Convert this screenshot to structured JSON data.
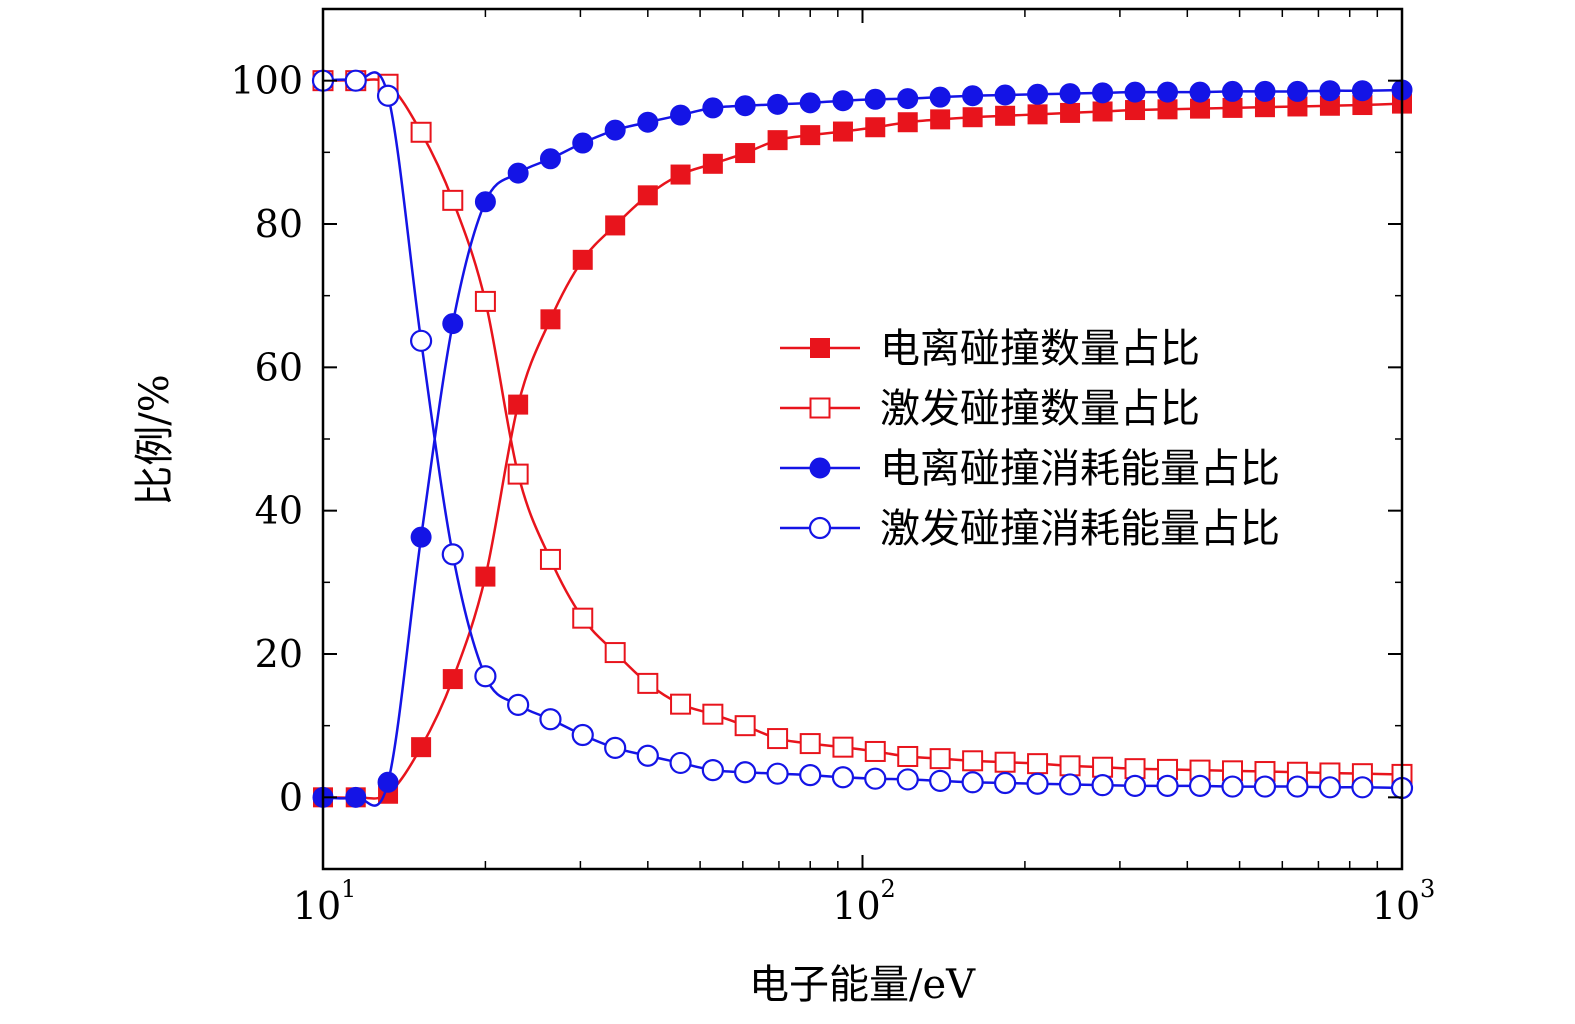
{
  "chart_data": {
    "type": "line",
    "xlabel": "电子能量/eV",
    "ylabel": "比例/%",
    "xscale": "log",
    "xlim": [
      10,
      1000
    ],
    "ylim": [
      -10,
      110
    ],
    "y_ticks": [
      0,
      20,
      40,
      60,
      80,
      100
    ],
    "y_tick_labels": [
      "0",
      "20",
      "40",
      "60",
      "80",
      "100"
    ],
    "x_ticks": [
      {
        "base": "10",
        "exp": "1",
        "value": 10
      },
      {
        "base": "10",
        "exp": "2",
        "value": 100
      },
      {
        "base": "10",
        "exp": "3",
        "value": 1000
      }
    ],
    "grid": false,
    "legend_position": "center-right",
    "series": [
      {
        "name": "电离碰撞数量占比",
        "color": "#e8141c",
        "marker": "square-filled",
        "x": [
          10,
          11.5,
          13.2,
          15.2,
          17.4,
          20,
          23,
          26.4,
          30.3,
          34.8,
          40,
          46,
          52.8,
          60.6,
          69.6,
          80,
          92,
          105.6,
          121.3,
          139.3,
          160,
          183.8,
          211.1,
          242.5,
          278.6,
          320,
          367.6,
          422.3,
          485.1,
          557.2,
          640,
          735.2,
          844.5,
          1000
        ],
        "y": [
          0,
          0,
          0.5,
          7,
          16.5,
          30.8,
          54.8,
          66.7,
          75,
          79.8,
          84,
          86.9,
          88.4,
          89.9,
          91.7,
          92.4,
          92.9,
          93.5,
          94.2,
          94.6,
          94.9,
          95.1,
          95.3,
          95.5,
          95.7,
          95.9,
          96,
          96.1,
          96.2,
          96.3,
          96.4,
          96.5,
          96.6,
          96.8
        ]
      },
      {
        "name": "激发碰撞数量占比",
        "color": "#e8141c",
        "marker": "square-open",
        "x": [
          10,
          11.5,
          13.2,
          15.2,
          17.4,
          20,
          23,
          26.4,
          30.3,
          34.8,
          40,
          46,
          52.8,
          60.6,
          69.6,
          80,
          92,
          105.6,
          121.3,
          139.3,
          160,
          183.8,
          211.1,
          242.5,
          278.6,
          320,
          367.6,
          422.3,
          485.1,
          557.2,
          640,
          735.2,
          844.5,
          1000
        ],
        "y": [
          100,
          100,
          99.5,
          92.8,
          83.3,
          69.2,
          45.1,
          33.2,
          25,
          20.2,
          15.9,
          13,
          11.6,
          10,
          8.2,
          7.5,
          7,
          6.4,
          5.7,
          5.4,
          5.1,
          4.9,
          4.7,
          4.4,
          4.2,
          4,
          3.9,
          3.8,
          3.7,
          3.6,
          3.5,
          3.4,
          3.3,
          3.2
        ]
      },
      {
        "name": "电离碰撞消耗能量占比",
        "color": "#1414e6",
        "marker": "circle-filled",
        "x": [
          10,
          11.5,
          13.2,
          15.2,
          17.4,
          20,
          23,
          26.4,
          30.3,
          34.8,
          40,
          46,
          52.8,
          60.6,
          69.6,
          80,
          92,
          105.6,
          121.3,
          139.3,
          160,
          183.8,
          211.1,
          242.5,
          278.6,
          320,
          367.6,
          422.3,
          485.1,
          557.2,
          640,
          735.2,
          844.5,
          1000
        ],
        "y": [
          0,
          0,
          2.1,
          36.3,
          66.1,
          83.1,
          87.1,
          89.1,
          91.3,
          93.1,
          94.2,
          95.2,
          96.2,
          96.5,
          96.7,
          96.9,
          97.2,
          97.4,
          97.5,
          97.7,
          97.9,
          98,
          98.1,
          98.2,
          98.3,
          98.4,
          98.4,
          98.4,
          98.5,
          98.5,
          98.5,
          98.6,
          98.6,
          98.7
        ]
      },
      {
        "name": "激发碰撞消耗能量占比",
        "color": "#1414e6",
        "marker": "circle-open",
        "x": [
          10,
          11.5,
          13.2,
          15.2,
          17.4,
          20,
          23,
          26.4,
          30.3,
          34.8,
          40,
          46,
          52.8,
          60.6,
          69.6,
          80,
          92,
          105.6,
          121.3,
          139.3,
          160,
          183.8,
          211.1,
          242.5,
          278.6,
          320,
          367.6,
          422.3,
          485.1,
          557.2,
          640,
          735.2,
          844.5,
          1000
        ],
        "y": [
          100,
          100,
          97.9,
          63.7,
          33.9,
          16.9,
          12.9,
          10.9,
          8.7,
          6.9,
          5.8,
          4.8,
          3.8,
          3.5,
          3.3,
          3.1,
          2.8,
          2.6,
          2.5,
          2.3,
          2.1,
          2,
          1.9,
          1.8,
          1.7,
          1.6,
          1.6,
          1.6,
          1.5,
          1.5,
          1.5,
          1.4,
          1.4,
          1.3
        ]
      }
    ]
  }
}
